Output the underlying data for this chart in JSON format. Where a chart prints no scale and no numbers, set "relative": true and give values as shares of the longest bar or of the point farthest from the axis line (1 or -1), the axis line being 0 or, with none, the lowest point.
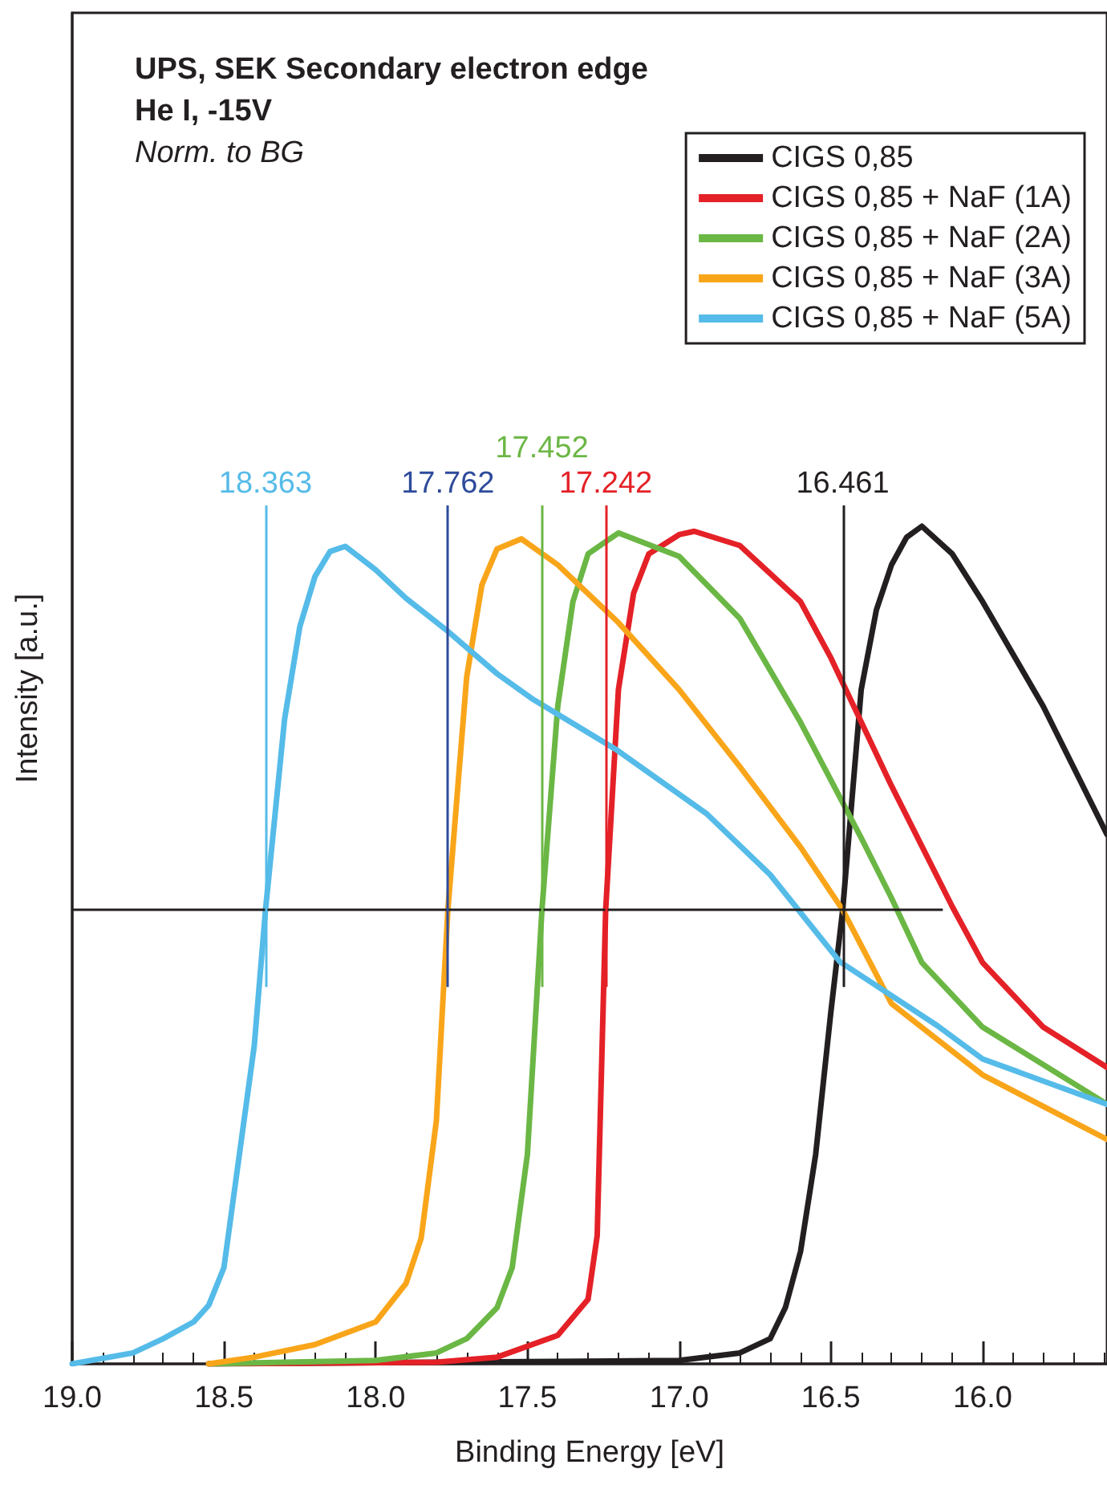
{
  "chart_data": {
    "type": "line",
    "xlabel": "Binding Energy [eV]",
    "ylabel": "Intensity [a.u.]",
    "relative": true,
    "annotations": [
      "UPS, SEK Secondary electron edge",
      "He I, -15V",
      "Norm. to BG"
    ],
    "xlim": [
      19.0,
      15.59
    ],
    "xticks": [
      {
        "value": 19.0,
        "label": "19.0"
      },
      18.5,
      {
        "value": 18.0,
        "label": "18.0"
      },
      17.5,
      {
        "value": 17.0,
        "label": "17.0"
      },
      16.5,
      {
        "value": 16.0,
        "label": "16.0"
      }
    ],
    "legend": "top right",
    "grid": false,
    "marker": "none",
    "line_style": "solid",
    "series": [
      {
        "name": "CIGS 0,85",
        "color": "#231f20",
        "x": [
          18.55,
          17.0,
          16.8,
          16.7,
          16.65,
          16.6,
          16.55,
          16.5,
          16.461,
          16.4,
          16.35,
          16.3,
          16.25,
          16.2,
          16.1,
          16.0,
          15.8,
          15.59
        ],
        "values": [
          0,
          0.004,
          0.013,
          0.03,
          0.067,
          0.134,
          0.25,
          0.42,
          0.542,
          0.805,
          0.9,
          0.954,
          0.987,
          1.0,
          0.967,
          0.91,
          0.785,
          0.632
        ]
      },
      {
        "name": "CIGS 0,85 + NaF (1A)",
        "color": "#e42127",
        "x": [
          18.55,
          17.8,
          17.6,
          17.4,
          17.3,
          17.27,
          17.242,
          17.2,
          17.15,
          17.1,
          17.0,
          16.95,
          16.8,
          16.6,
          16.5,
          16.3,
          16.1,
          16.0,
          15.8,
          15.59
        ],
        "values": [
          0,
          0.002,
          0.008,
          0.034,
          0.077,
          0.153,
          0.542,
          0.805,
          0.92,
          0.967,
          0.99,
          0.994,
          0.977,
          0.91,
          0.843,
          0.69,
          0.546,
          0.479,
          0.402,
          0.354
        ]
      },
      {
        "name": "CIGS 0,85 + NaF (2A)",
        "color": "#6bb745",
        "x": [
          18.55,
          18.3,
          18.0,
          17.8,
          17.7,
          17.6,
          17.55,
          17.5,
          17.452,
          17.4,
          17.35,
          17.3,
          17.2,
          17.0,
          16.8,
          16.6,
          16.4,
          16.3,
          16.2,
          16.0,
          15.59
        ],
        "values": [
          0,
          0.002,
          0.004,
          0.013,
          0.03,
          0.067,
          0.115,
          0.25,
          0.542,
          0.785,
          0.91,
          0.967,
          0.992,
          0.964,
          0.89,
          0.766,
          0.628,
          0.556,
          0.479,
          0.402,
          0.31
        ]
      },
      {
        "name": "CIGS 0,85 + NaF (3A)",
        "color": "#f9a51a",
        "x": [
          18.55,
          18.4,
          18.2,
          18.0,
          17.9,
          17.85,
          17.8,
          17.762,
          17.7,
          17.65,
          17.6,
          17.52,
          17.4,
          17.2,
          17.0,
          16.8,
          16.6,
          16.461,
          16.3,
          16.0,
          15.59
        ],
        "values": [
          0,
          0.008,
          0.023,
          0.05,
          0.096,
          0.15,
          0.29,
          0.542,
          0.82,
          0.93,
          0.973,
          0.985,
          0.954,
          0.885,
          0.805,
          0.713,
          0.617,
          0.542,
          0.43,
          0.345,
          0.268
        ]
      },
      {
        "name": "CIGS 0,85 + NaF (5A)",
        "color": "#55bbe8",
        "x": [
          19.0,
          18.8,
          18.7,
          18.6,
          18.55,
          18.5,
          18.4,
          18.363,
          18.3,
          18.25,
          18.2,
          18.15,
          18.1,
          18.0,
          17.9,
          17.77,
          17.6,
          17.48,
          17.21,
          16.91,
          16.7,
          16.47,
          16.15,
          16.0,
          15.59
        ],
        "values": [
          0,
          0.013,
          0.03,
          0.05,
          0.07,
          0.115,
          0.38,
          0.542,
          0.77,
          0.88,
          0.94,
          0.97,
          0.976,
          0.948,
          0.914,
          0.877,
          0.824,
          0.793,
          0.734,
          0.657,
          0.584,
          0.48,
          0.404,
          0.364,
          0.31
        ]
      }
    ],
    "ref_lines": [
      {
        "axis": "y",
        "value": 0.542,
        "color": "#231f20"
      },
      {
        "axis": "x",
        "value": 18.363,
        "label": "18.363",
        "color": "#55bbe8"
      },
      {
        "axis": "x",
        "value": 17.762,
        "label": "17.762",
        "color": "#2e4b9b"
      },
      {
        "axis": "x",
        "value": 17.452,
        "label": "17.452",
        "color": "#6bb745"
      },
      {
        "axis": "x",
        "value": 17.242,
        "label": "17.242",
        "color": "#e42127"
      },
      {
        "axis": "x",
        "value": 16.461,
        "label": "16.461",
        "color": "#231f20"
      }
    ]
  }
}
